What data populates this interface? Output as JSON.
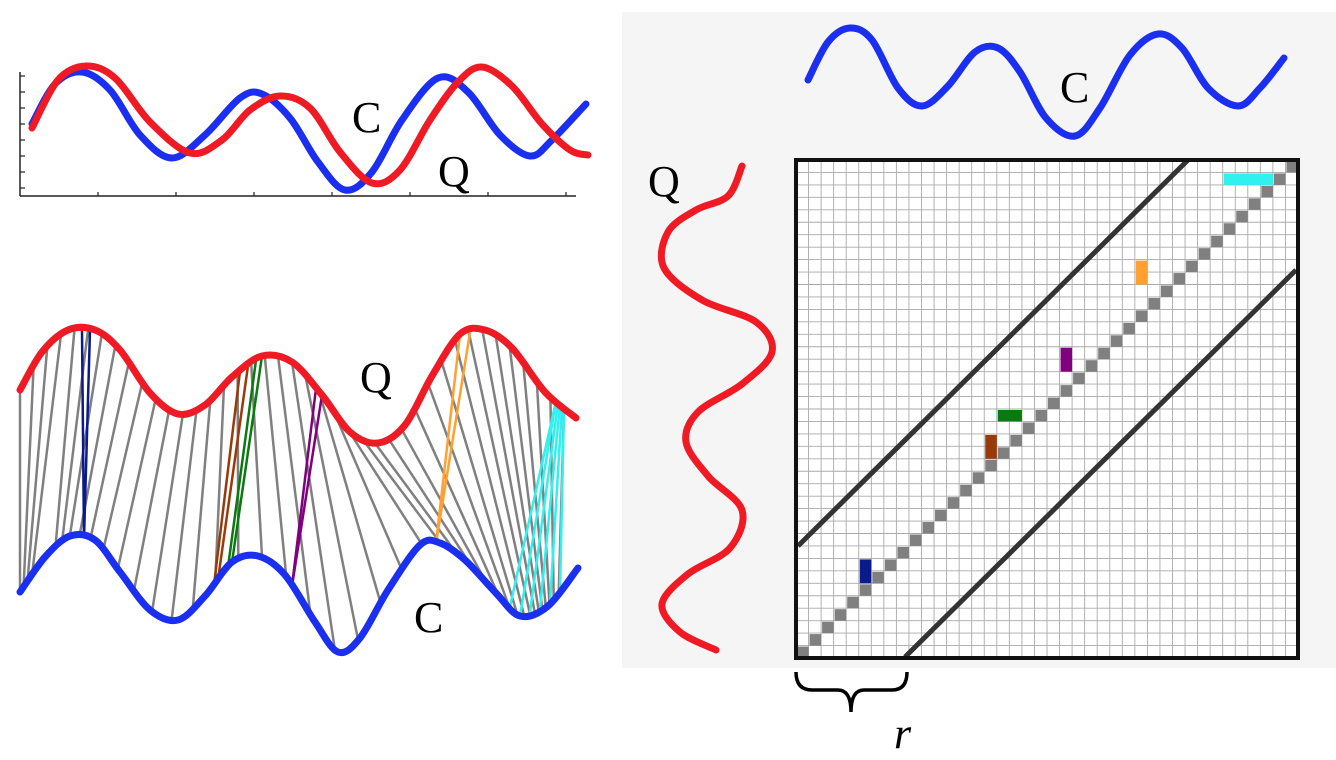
{
  "labels": {
    "top_c": "C",
    "top_q": "Q",
    "mid_q": "Q",
    "mid_c": "C",
    "mat_c": "C",
    "mat_q": "Q",
    "window": "r"
  },
  "colors": {
    "seriesC": "#1a2ff0",
    "seriesQ": "#f01a24",
    "path": "#808080",
    "band": "#333333",
    "panel": "#f5f5f5",
    "grid": "#aaaaaa",
    "warp_highlights": [
      "#0a1a8a",
      "#9a3a0a",
      "#0a7a10",
      "#800080",
      "#ffa030",
      "#30f0f0"
    ]
  },
  "matrix": {
    "grid_cells": 40,
    "window_r_cells": 7,
    "path_cells_highlighted": [
      "dark-blue",
      "brown",
      "green",
      "purple",
      "orange",
      "cyan"
    ]
  }
}
